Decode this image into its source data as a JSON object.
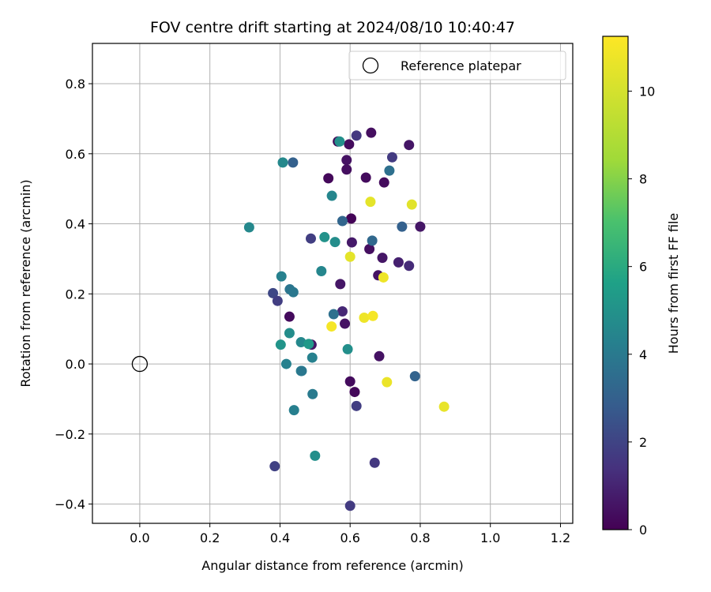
{
  "chart_data": {
    "type": "scatter",
    "title": "FOV centre drift starting at 2024/08/10 10:40:47",
    "xlabel": "Angular distance from reference (arcmin)",
    "ylabel": "Rotation from reference (arcmin)",
    "xlim": [
      -0.135,
      1.235
    ],
    "ylim": [
      -0.455,
      0.915
    ],
    "xticks": [
      0.0,
      0.2,
      0.4,
      0.6,
      0.8,
      1.0,
      1.2
    ],
    "xtick_labels": [
      "0.0",
      "0.2",
      "0.4",
      "0.6",
      "0.8",
      "1.0",
      "1.2"
    ],
    "yticks": [
      -0.4,
      -0.2,
      0.0,
      0.2,
      0.4,
      0.6,
      0.8
    ],
    "ytick_labels": [
      "−0.4",
      "−0.2",
      "0.0",
      "0.2",
      "0.4",
      "0.6",
      "0.8"
    ],
    "grid": true,
    "legend": {
      "position": "top-right",
      "entries": [
        "Reference platepar"
      ]
    },
    "reference_point": {
      "x": 0.0,
      "y": 0.0,
      "label": "Reference platepar",
      "marker": "open-circle"
    },
    "colorbar": {
      "label": "Hours from first FF file",
      "colormap": "viridis",
      "range": [
        0,
        11.25
      ],
      "ticks": [
        0,
        2,
        4,
        6,
        8,
        10
      ],
      "tick_labels": [
        "0",
        "2",
        "4",
        "6",
        "8",
        "10"
      ]
    },
    "points": [
      {
        "x": 0.565,
        "y": 0.635,
        "h": 0.2
      },
      {
        "x": 0.597,
        "y": 0.627,
        "h": 0.3
      },
      {
        "x": 0.66,
        "y": 0.66,
        "h": 0.4
      },
      {
        "x": 0.768,
        "y": 0.625,
        "h": 0.6
      },
      {
        "x": 0.618,
        "y": 0.652,
        "h": 1.6
      },
      {
        "x": 0.72,
        "y": 0.59,
        "h": 1.7
      },
      {
        "x": 0.59,
        "y": 0.582,
        "h": 0.5
      },
      {
        "x": 0.59,
        "y": 0.555,
        "h": 0.4
      },
      {
        "x": 0.538,
        "y": 0.53,
        "h": 0.2
      },
      {
        "x": 0.645,
        "y": 0.532,
        "h": 0.3
      },
      {
        "x": 0.697,
        "y": 0.518,
        "h": 0.3
      },
      {
        "x": 0.603,
        "y": 0.415,
        "h": 0.1
      },
      {
        "x": 0.8,
        "y": 0.392,
        "h": 0.6
      },
      {
        "x": 0.605,
        "y": 0.347,
        "h": 0.7
      },
      {
        "x": 0.655,
        "y": 0.328,
        "h": 0.4
      },
      {
        "x": 0.692,
        "y": 0.303,
        "h": 0.6
      },
      {
        "x": 0.738,
        "y": 0.29,
        "h": 0.9
      },
      {
        "x": 0.768,
        "y": 0.28,
        "h": 1.2
      },
      {
        "x": 0.68,
        "y": 0.253,
        "h": 0.5
      },
      {
        "x": 0.572,
        "y": 0.228,
        "h": 0.6
      },
      {
        "x": 0.427,
        "y": 0.135,
        "h": 0.3
      },
      {
        "x": 0.578,
        "y": 0.15,
        "h": 1.1
      },
      {
        "x": 0.585,
        "y": 0.115,
        "h": 0.5
      },
      {
        "x": 0.49,
        "y": 0.055,
        "h": 0.6
      },
      {
        "x": 0.683,
        "y": 0.022,
        "h": 0.5
      },
      {
        "x": 0.6,
        "y": -0.05,
        "h": 0.3
      },
      {
        "x": 0.613,
        "y": -0.08,
        "h": 0.2
      },
      {
        "x": 0.618,
        "y": -0.12,
        "h": 1.8
      },
      {
        "x": 0.67,
        "y": -0.282,
        "h": 1.6
      },
      {
        "x": 0.6,
        "y": -0.405,
        "h": 1.7
      },
      {
        "x": 0.385,
        "y": -0.292,
        "h": 1.9
      },
      {
        "x": 0.488,
        "y": 0.358,
        "h": 1.8
      },
      {
        "x": 0.38,
        "y": 0.202,
        "h": 2.1
      },
      {
        "x": 0.393,
        "y": 0.18,
        "h": 1.8
      },
      {
        "x": 0.437,
        "y": 0.575,
        "h": 3.0
      },
      {
        "x": 0.712,
        "y": 0.552,
        "h": 3.6
      },
      {
        "x": 0.578,
        "y": 0.408,
        "h": 3.2
      },
      {
        "x": 0.748,
        "y": 0.392,
        "h": 3.0
      },
      {
        "x": 0.663,
        "y": 0.352,
        "h": 3.3
      },
      {
        "x": 0.553,
        "y": 0.142,
        "h": 3.6
      },
      {
        "x": 0.785,
        "y": -0.035,
        "h": 3.1
      },
      {
        "x": 0.408,
        "y": 0.575,
        "h": 4.6
      },
      {
        "x": 0.57,
        "y": 0.635,
        "h": 4.9
      },
      {
        "x": 0.548,
        "y": 0.48,
        "h": 4.5
      },
      {
        "x": 0.312,
        "y": 0.39,
        "h": 4.6
      },
      {
        "x": 0.527,
        "y": 0.362,
        "h": 5.0
      },
      {
        "x": 0.557,
        "y": 0.348,
        "h": 4.8
      },
      {
        "x": 0.518,
        "y": 0.265,
        "h": 4.5
      },
      {
        "x": 0.404,
        "y": 0.25,
        "h": 4.3
      },
      {
        "x": 0.428,
        "y": 0.213,
        "h": 3.8
      },
      {
        "x": 0.438,
        "y": 0.205,
        "h": 3.9
      },
      {
        "x": 0.427,
        "y": 0.088,
        "h": 4.8
      },
      {
        "x": 0.402,
        "y": 0.055,
        "h": 5.1
      },
      {
        "x": 0.46,
        "y": 0.062,
        "h": 4.6
      },
      {
        "x": 0.482,
        "y": 0.057,
        "h": 5.3
      },
      {
        "x": 0.593,
        "y": 0.042,
        "h": 4.9
      },
      {
        "x": 0.418,
        "y": 0.0,
        "h": 4.3
      },
      {
        "x": 0.492,
        "y": 0.018,
        "h": 4.3
      },
      {
        "x": 0.46,
        "y": -0.02,
        "h": 4.2
      },
      {
        "x": 0.462,
        "y": -0.02,
        "h": 3.9
      },
      {
        "x": 0.493,
        "y": -0.086,
        "h": 4.0
      },
      {
        "x": 0.44,
        "y": -0.132,
        "h": 4.2
      },
      {
        "x": 0.5,
        "y": -0.262,
        "h": 4.9
      },
      {
        "x": 0.658,
        "y": 0.463,
        "h": 10.5
      },
      {
        "x": 0.776,
        "y": 0.455,
        "h": 10.4
      },
      {
        "x": 0.6,
        "y": 0.306,
        "h": 10.5
      },
      {
        "x": 0.695,
        "y": 0.247,
        "h": 10.8
      },
      {
        "x": 0.547,
        "y": 0.107,
        "h": 11.0
      },
      {
        "x": 0.64,
        "y": 0.132,
        "h": 10.8
      },
      {
        "x": 0.665,
        "y": 0.137,
        "h": 11.0
      },
      {
        "x": 0.705,
        "y": -0.052,
        "h": 10.7
      },
      {
        "x": 0.868,
        "y": -0.122,
        "h": 10.6
      }
    ]
  }
}
